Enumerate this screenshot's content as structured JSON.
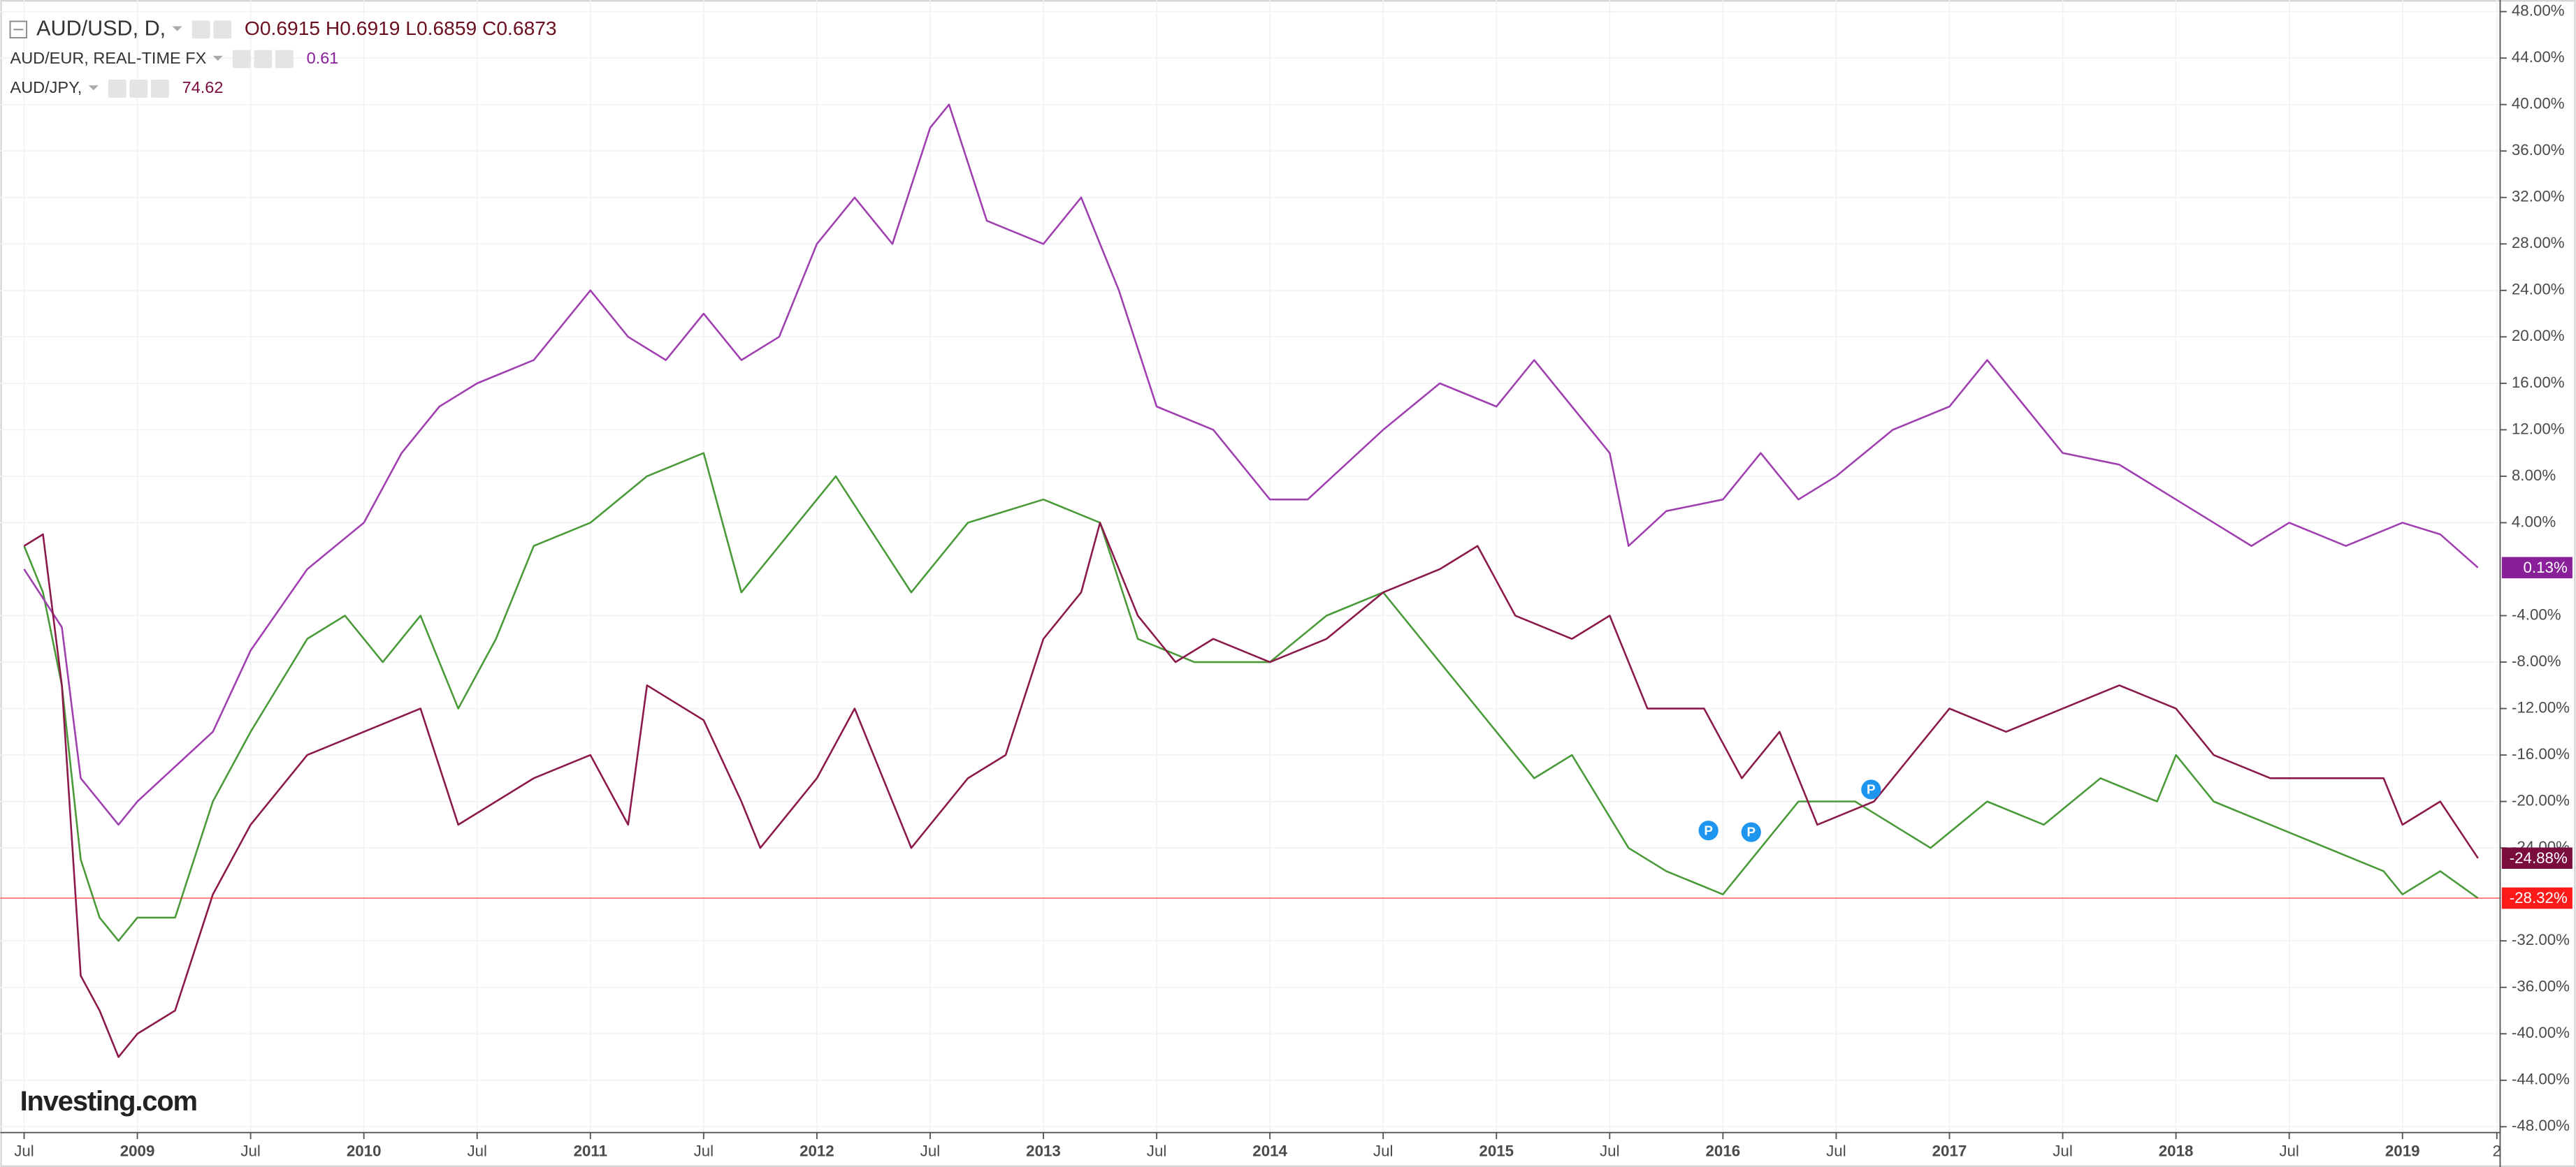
{
  "chart_data": {
    "type": "line",
    "watermark": "Investing.com",
    "xlim": [
      "2008-06",
      "2019-06"
    ],
    "xticks": [
      {
        "value": "2008-07",
        "label": "Jul"
      },
      {
        "value": "2009-01",
        "label": "2009"
      },
      {
        "value": "2009-07",
        "label": "Jul"
      },
      {
        "value": "2010-01",
        "label": "2010"
      },
      {
        "value": "2010-07",
        "label": "Jul"
      },
      {
        "value": "2011-01",
        "label": "2011"
      },
      {
        "value": "2011-07",
        "label": "Jul"
      },
      {
        "value": "2012-01",
        "label": "2012"
      },
      {
        "value": "2012-07",
        "label": "Jul"
      },
      {
        "value": "2013-01",
        "label": "2013"
      },
      {
        "value": "2013-07",
        "label": "Jul"
      },
      {
        "value": "2014-01",
        "label": "2014"
      },
      {
        "value": "2014-07",
        "label": "Jul"
      },
      {
        "value": "2015-01",
        "label": "2015"
      },
      {
        "value": "2015-07",
        "label": "Jul"
      },
      {
        "value": "2016-01",
        "label": "2016"
      },
      {
        "value": "2016-07",
        "label": "Jul"
      },
      {
        "value": "2017-01",
        "label": "2017"
      },
      {
        "value": "2017-07",
        "label": "Jul"
      },
      {
        "value": "2018-01",
        "label": "2018"
      },
      {
        "value": "2018-07",
        "label": "Jul"
      },
      {
        "value": "2019-01",
        "label": "2019"
      },
      {
        "value": "2019-06",
        "label": "2"
      }
    ],
    "ylim": [
      -48.5,
      49
    ],
    "yticks": [
      {
        "value": 48,
        "label": "48.00%"
      },
      {
        "value": 44,
        "label": "44.00%"
      },
      {
        "value": 40,
        "label": "40.00%"
      },
      {
        "value": 36,
        "label": "36.00%"
      },
      {
        "value": 32,
        "label": "32.00%"
      },
      {
        "value": 28,
        "label": "28.00%"
      },
      {
        "value": 24,
        "label": "24.00%"
      },
      {
        "value": 20,
        "label": "20.00%"
      },
      {
        "value": 16,
        "label": "16.00%"
      },
      {
        "value": 12,
        "label": "12.00%"
      },
      {
        "value": 8,
        "label": "8.00%"
      },
      {
        "value": 4,
        "label": "4.00%"
      },
      {
        "value": -4,
        "label": "-4.00%"
      },
      {
        "value": -8,
        "label": "-8.00%"
      },
      {
        "value": -12,
        "label": "-12.00%"
      },
      {
        "value": -16,
        "label": "-16.00%"
      },
      {
        "value": -20,
        "label": "-20.00%"
      },
      {
        "value": -24,
        "label": "-24.00%"
      },
      {
        "value": -32,
        "label": "-32.00%"
      },
      {
        "value": -36,
        "label": "-36.00%"
      },
      {
        "value": -40,
        "label": "-40.00%"
      },
      {
        "value": -44,
        "label": "-44.00%"
      },
      {
        "value": -48,
        "label": "-48.00%"
      }
    ],
    "grid": true,
    "series": [
      {
        "name": "AUD/USD, D,",
        "quote": "O0.6915 H0.6919 L0.6859 C0.6873",
        "color": "#4a9a3a",
        "label_color": "#ff1a1a",
        "last_label": "-28.32%",
        "x": [
          "2008-07",
          "2008-08",
          "2008-09",
          "2008-10",
          "2008-11",
          "2008-12",
          "2009-01",
          "2009-03",
          "2009-05",
          "2009-07",
          "2009-10",
          "2009-12",
          "2010-02",
          "2010-04",
          "2010-06",
          "2010-08",
          "2010-10",
          "2011-01",
          "2011-04",
          "2011-07",
          "2011-09",
          "2011-11",
          "2012-02",
          "2012-06",
          "2012-09",
          "2013-01",
          "2013-04",
          "2013-06",
          "2013-09",
          "2014-01",
          "2014-04",
          "2014-07",
          "2014-09",
          "2014-12",
          "2015-03",
          "2015-05",
          "2015-08",
          "2015-10",
          "2016-01",
          "2016-03",
          "2016-05",
          "2016-08",
          "2016-12",
          "2017-03",
          "2017-06",
          "2017-09",
          "2017-12",
          "2018-01",
          "2018-03",
          "2018-06",
          "2018-09",
          "2018-12",
          "2019-01",
          "2019-03",
          "2019-05"
        ],
        "values": [
          2,
          -2,
          -10,
          -25,
          -30,
          -32,
          -30,
          -30,
          -20,
          -14,
          -6,
          -4,
          -8,
          -4,
          -12,
          -6,
          2,
          4,
          8,
          10,
          -2,
          2,
          8,
          -2,
          4,
          6,
          4,
          -6,
          -8,
          -8,
          -4,
          -2,
          -6,
          -12,
          -18,
          -16,
          -24,
          -26,
          -28,
          -24,
          -20,
          -20,
          -24,
          -20,
          -22,
          -18,
          -20,
          -16,
          -20,
          -22,
          -24,
          -26,
          -28,
          -26,
          -28.32
        ]
      },
      {
        "name": "AUD/EUR, REAL-TIME FX",
        "quote": "0.61",
        "color": "#a040b0",
        "label_color": "#8a1f9a",
        "last_label": "0.13%",
        "x": [
          "2008-07",
          "2008-09",
          "2008-10",
          "2008-12",
          "2009-01",
          "2009-03",
          "2009-05",
          "2009-07",
          "2009-10",
          "2010-01",
          "2010-03",
          "2010-05",
          "2010-07",
          "2010-10",
          "2011-01",
          "2011-03",
          "2011-05",
          "2011-07",
          "2011-09",
          "2011-11",
          "2012-01",
          "2012-03",
          "2012-05",
          "2012-07",
          "2012-08",
          "2012-10",
          "2013-01",
          "2013-03",
          "2013-05",
          "2013-07",
          "2013-10",
          "2014-01",
          "2014-03",
          "2014-05",
          "2014-07",
          "2014-10",
          "2015-01",
          "2015-03",
          "2015-05",
          "2015-07",
          "2015-08",
          "2015-10",
          "2016-01",
          "2016-03",
          "2016-05",
          "2016-07",
          "2016-10",
          "2017-01",
          "2017-03",
          "2017-05",
          "2017-07",
          "2017-10",
          "2018-01",
          "2018-03",
          "2018-05",
          "2018-07",
          "2018-10",
          "2019-01",
          "2019-03",
          "2019-05"
        ],
        "values": [
          0,
          -5,
          -18,
          -22,
          -20,
          -17,
          -14,
          -7,
          0,
          4,
          10,
          14,
          16,
          18,
          24,
          20,
          18,
          22,
          18,
          20,
          28,
          32,
          28,
          38,
          40,
          30,
          28,
          32,
          24,
          14,
          12,
          6,
          6,
          9,
          12,
          16,
          14,
          18,
          14,
          10,
          2,
          5,
          6,
          10,
          6,
          8,
          12,
          14,
          18,
          14,
          10,
          9,
          6,
          4,
          2,
          4,
          2,
          4,
          3,
          0.13
        ]
      },
      {
        "name": "AUD/JPY,",
        "quote": "74.62",
        "color": "#8b1a4a",
        "label_color": "#7b0d3e",
        "last_label": "-24.88%",
        "x": [
          "2008-07",
          "2008-08",
          "2008-09",
          "2008-10",
          "2008-11",
          "2008-12",
          "2009-01",
          "2009-03",
          "2009-05",
          "2009-07",
          "2009-10",
          "2010-01",
          "2010-04",
          "2010-06",
          "2010-08",
          "2010-10",
          "2011-01",
          "2011-03",
          "2011-04",
          "2011-07",
          "2011-09",
          "2011-10",
          "2012-01",
          "2012-03",
          "2012-06",
          "2012-09",
          "2012-11",
          "2013-01",
          "2013-03",
          "2013-04",
          "2013-06",
          "2013-08",
          "2013-10",
          "2014-01",
          "2014-04",
          "2014-07",
          "2014-10",
          "2014-12",
          "2015-02",
          "2015-05",
          "2015-07",
          "2015-09",
          "2015-12",
          "2016-02",
          "2016-04",
          "2016-06",
          "2016-09",
          "2016-11",
          "2017-01",
          "2017-04",
          "2017-07",
          "2017-10",
          "2018-01",
          "2018-03",
          "2018-06",
          "2018-09",
          "2018-12",
          "2019-01",
          "2019-03",
          "2019-05"
        ],
        "values": [
          2,
          3,
          -10,
          -35,
          -38,
          -42,
          -40,
          -38,
          -28,
          -22,
          -16,
          -14,
          -12,
          -22,
          -20,
          -18,
          -16,
          -22,
          -10,
          -13,
          -20,
          -24,
          -18,
          -12,
          -24,
          -18,
          -16,
          -6,
          -2,
          4,
          -4,
          -8,
          -6,
          -8,
          -6,
          -2,
          0,
          2,
          -4,
          -6,
          -4,
          -12,
          -12,
          -18,
          -14,
          -22,
          -20,
          -16,
          -12,
          -14,
          -12,
          -10,
          -12,
          -16,
          -18,
          -18,
          -18,
          -22,
          -20,
          -24.88
        ]
      }
    ]
  }
}
